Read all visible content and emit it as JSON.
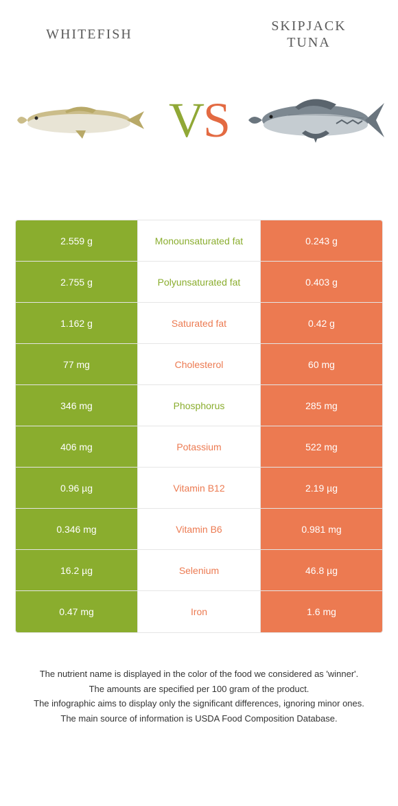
{
  "header": {
    "left_title": "WHITEFISH",
    "right_title": "SKIPJACK TUNA",
    "vs_v": "V",
    "vs_s": "S"
  },
  "colors": {
    "left": "#8aad2e",
    "right": "#ec7a51",
    "border": "#e5e5e5",
    "text": "#333333",
    "title": "#5a5a5a"
  },
  "rows": [
    {
      "left": "2.559 g",
      "label": "Monounsaturated fat",
      "winner": "left",
      "right": "0.243 g"
    },
    {
      "left": "2.755 g",
      "label": "Polyunsaturated fat",
      "winner": "left",
      "right": "0.403 g"
    },
    {
      "left": "1.162 g",
      "label": "Saturated fat",
      "winner": "right",
      "right": "0.42 g"
    },
    {
      "left": "77 mg",
      "label": "Cholesterol",
      "winner": "right",
      "right": "60 mg"
    },
    {
      "left": "346 mg",
      "label": "Phosphorus",
      "winner": "left",
      "right": "285 mg"
    },
    {
      "left": "406 mg",
      "label": "Potassium",
      "winner": "right",
      "right": "522 mg"
    },
    {
      "left": "0.96 µg",
      "label": "Vitamin B12",
      "winner": "right",
      "right": "2.19 µg"
    },
    {
      "left": "0.346 mg",
      "label": "Vitamin B6",
      "winner": "right",
      "right": "0.981 mg"
    },
    {
      "left": "16.2 µg",
      "label": "Selenium",
      "winner": "right",
      "right": "46.8 µg"
    },
    {
      "left": "0.47 mg",
      "label": "Iron",
      "winner": "right",
      "right": "1.6 mg"
    }
  ],
  "footer": {
    "l1": "The nutrient name is displayed in the color of the food we considered as 'winner'.",
    "l2": "The amounts are specified per 100 gram of the product.",
    "l3": "The infographic aims to display only the significant differences, ignoring minor ones.",
    "l4": "The main source of information is USDA Food Composition Database."
  }
}
